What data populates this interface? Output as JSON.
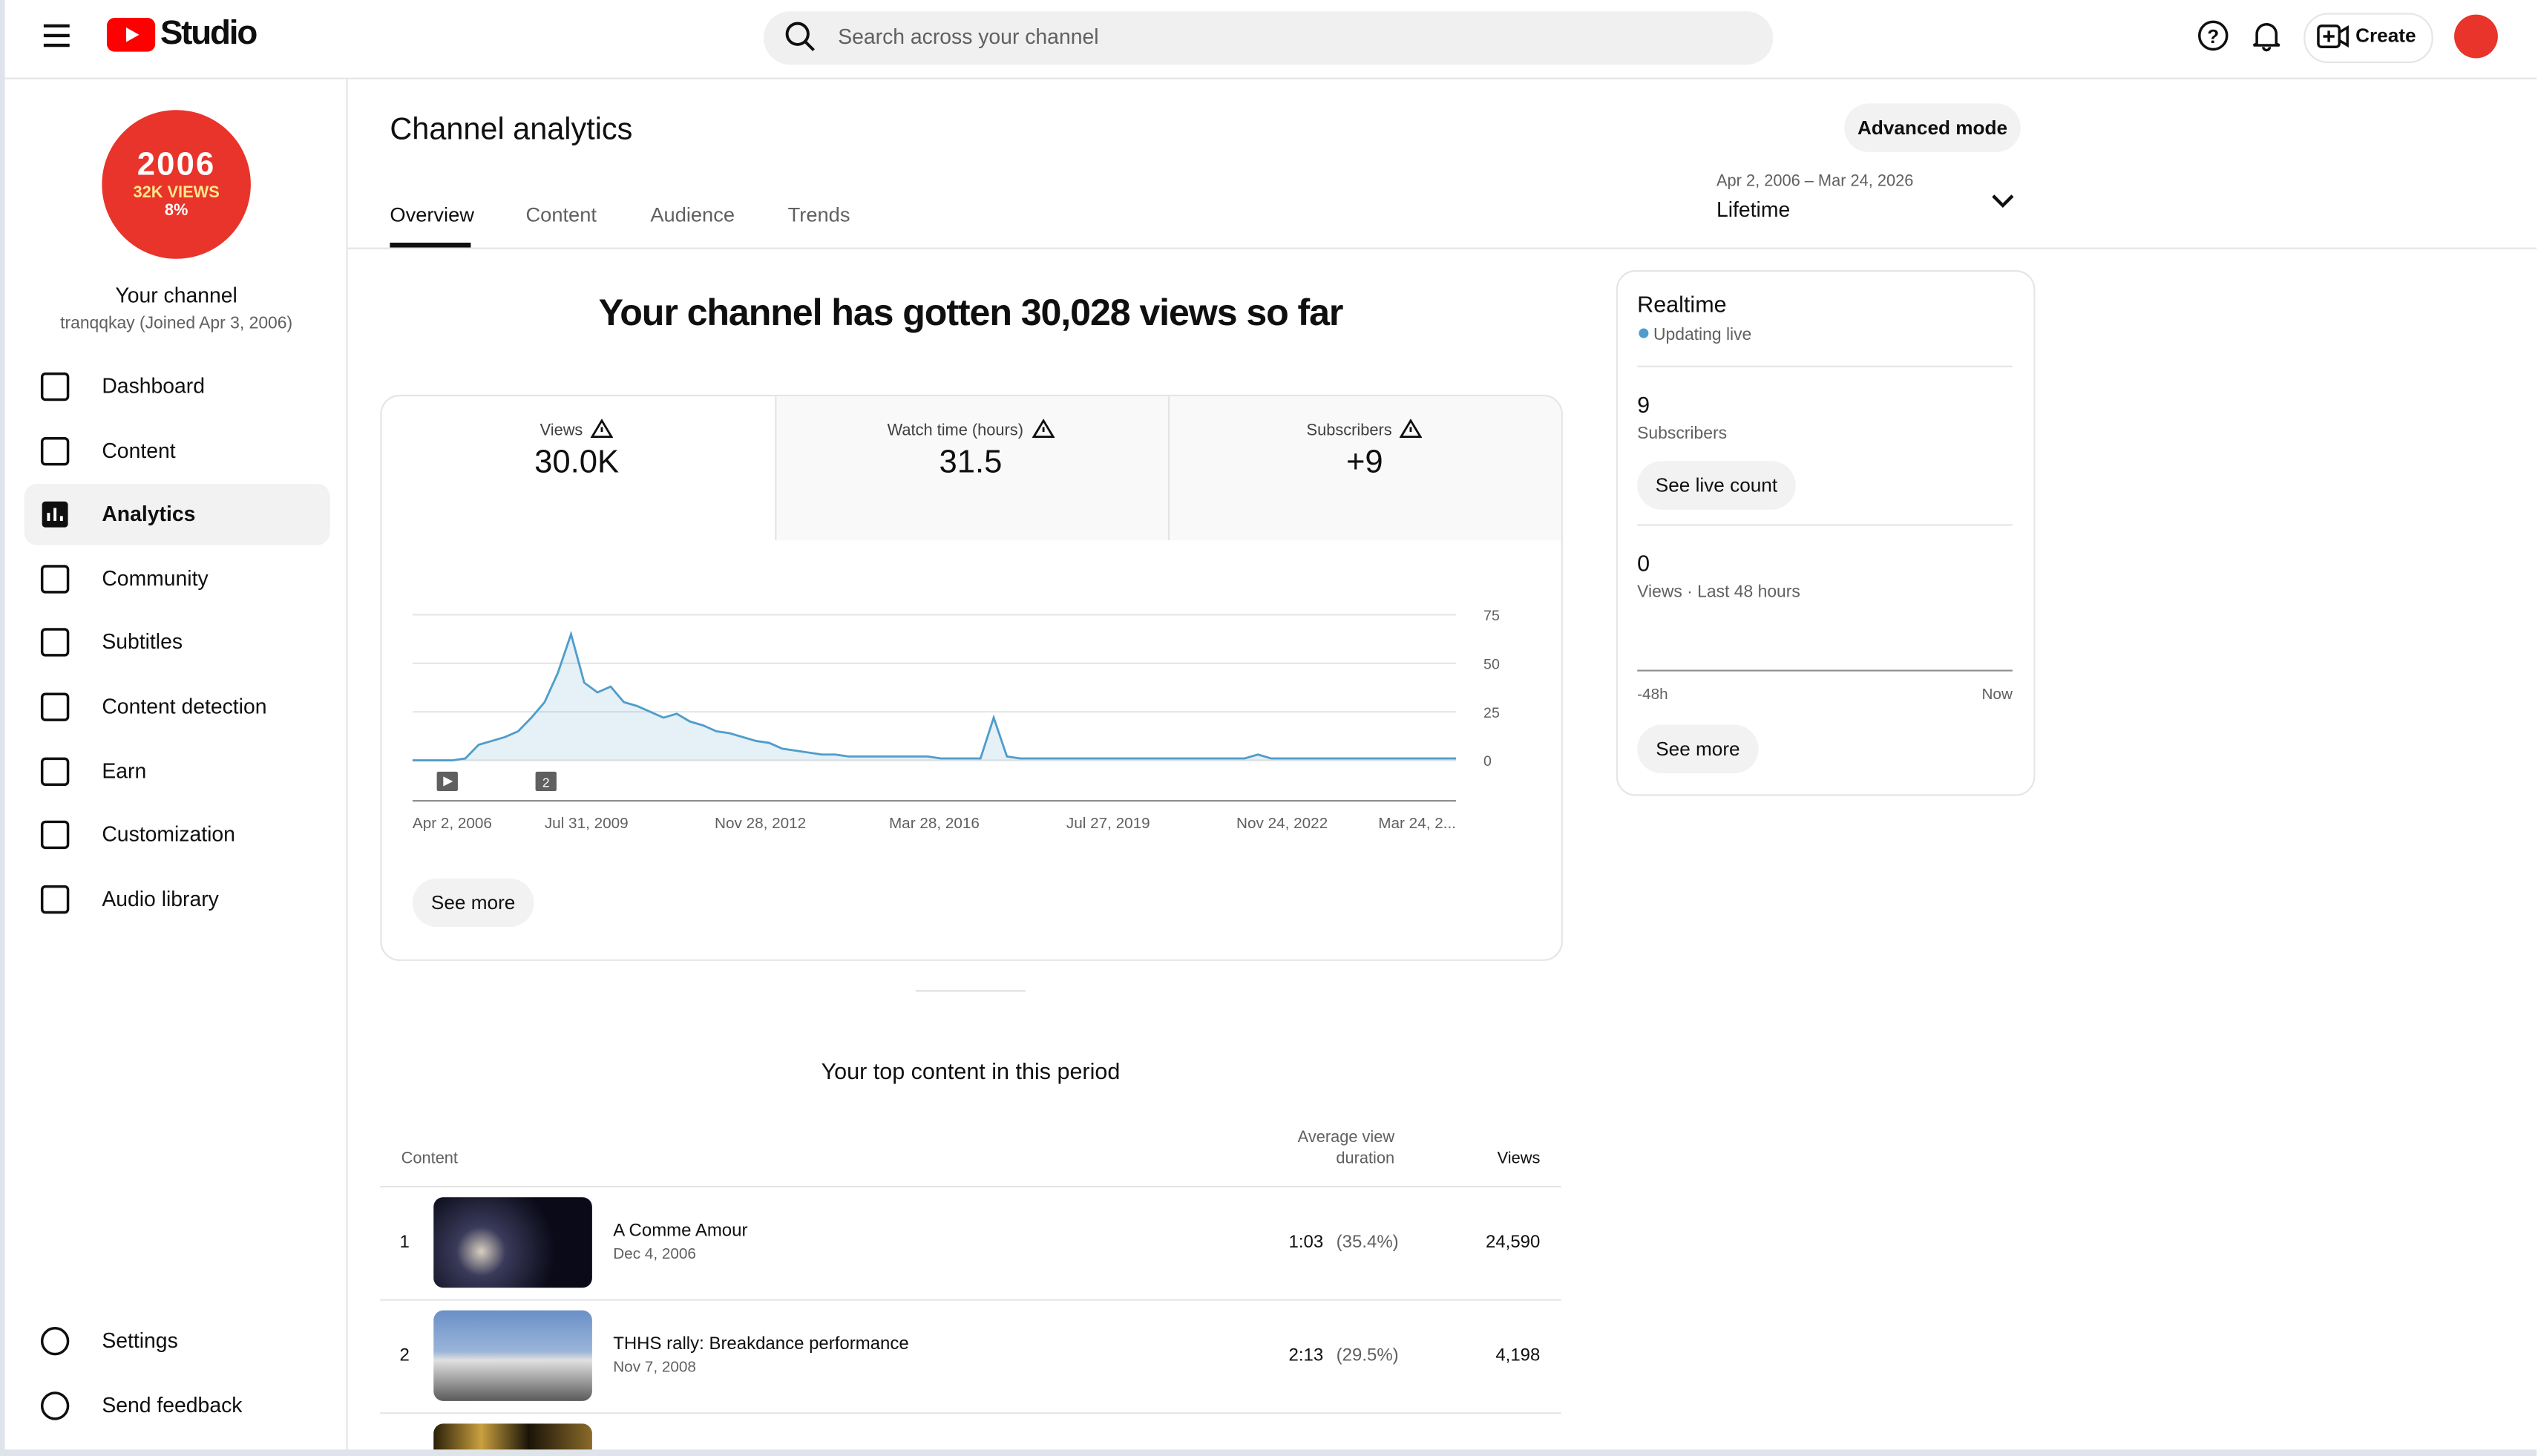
{
  "header": {
    "logo_text": "Studio",
    "search_placeholder": "Search across your channel",
    "create": "Create"
  },
  "sidebar": {
    "avatar": {
      "year": "2006",
      "views": "32K VIEWS",
      "pct": "8%"
    },
    "channel_title": "Your channel",
    "channel_sub": "tranqqkay (Joined Apr 3, 2006)",
    "nav": [
      "Dashboard",
      "Content",
      "Analytics",
      "Community",
      "Subtitles",
      "Content detection",
      "Earn",
      "Customization",
      "Audio library"
    ],
    "bottom_nav": [
      "Settings",
      "Send feedback"
    ]
  },
  "page": {
    "title": "Channel analytics",
    "advanced": "Advanced mode",
    "tabs": [
      "Overview",
      "Content",
      "Audience",
      "Trends"
    ],
    "date_range": "Apr 2, 2006 – Mar 24, 2026",
    "period": "Lifetime"
  },
  "overview": {
    "headline": "Your channel has gotten 30,028 views so far",
    "metrics": [
      {
        "label": "Views",
        "value": "30.0K"
      },
      {
        "label": "Watch time (hours)",
        "value": "31.5"
      },
      {
        "label": "Subscribers",
        "value": "+9"
      }
    ],
    "chart": {
      "type": "line",
      "color": "#4f9dcb",
      "values": [
        0,
        0,
        0,
        0,
        1,
        8,
        10,
        12,
        15,
        22,
        30,
        45,
        65,
        40,
        35,
        38,
        30,
        28,
        25,
        22,
        24,
        20,
        18,
        15,
        14,
        12,
        10,
        9,
        6,
        5,
        4,
        3,
        3,
        2,
        2,
        2,
        2,
        2,
        2,
        2,
        1,
        1,
        1,
        1,
        22,
        2,
        1,
        1,
        1,
        1,
        1,
        1,
        1,
        1,
        1,
        1,
        1,
        1,
        1,
        1,
        1,
        1,
        1,
        1,
        3,
        1,
        1,
        1,
        1,
        1,
        1,
        1,
        1,
        1,
        1,
        1,
        1,
        1,
        1,
        1
      ],
      "ylim": [
        0,
        75
      ],
      "yticks": [
        0,
        25,
        50,
        75
      ],
      "xlabels": [
        "Apr 2, 2006",
        "Jul 31, 2009",
        "Nov 28, 2012",
        "Mar 28, 2016",
        "Jul 27, 2019",
        "Nov 24, 2022",
        "Mar 24, 2..."
      ],
      "annotation": "2"
    },
    "see_more": "See more"
  },
  "top_content": {
    "title": "Your top content in this period",
    "columns": [
      "Content",
      "Average view duration",
      "Views"
    ],
    "rows": [
      {
        "rank": 1,
        "title": "A Comme Amour",
        "date": "Dec 4, 2006",
        "avd": "1:03",
        "avd_pct": "(35.4%)",
        "views": "24,590"
      },
      {
        "rank": 2,
        "title": "THHS rally: Breakdance performance",
        "date": "Nov 7, 2008",
        "avd": "2:13",
        "avd_pct": "(29.5%)",
        "views": "4,198"
      }
    ]
  },
  "realtime": {
    "title": "Realtime",
    "status": "Updating live",
    "subs_value": 9,
    "subs_label": "Subscribers",
    "see_live": "See live count",
    "views_value": 0,
    "views_label": "Views · Last 48 hours",
    "axis_start": "-48h",
    "axis_end": "Now",
    "see_more": "See more"
  }
}
